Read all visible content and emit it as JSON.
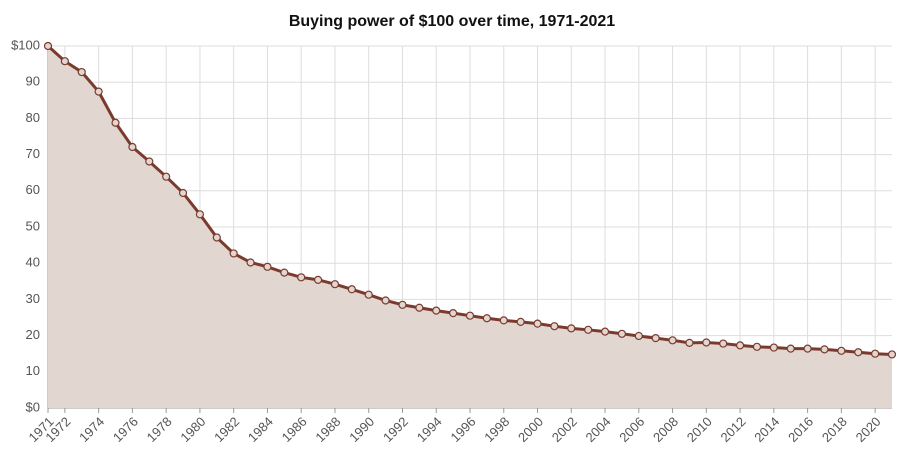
{
  "chart_data": {
    "type": "line",
    "title": "Buying power of $100 over time, 1971-2021",
    "x": [
      1971,
      1972,
      1973,
      1974,
      1975,
      1976,
      1977,
      1978,
      1979,
      1980,
      1981,
      1982,
      1983,
      1984,
      1985,
      1986,
      1987,
      1988,
      1989,
      1990,
      1991,
      1992,
      1993,
      1994,
      1995,
      1996,
      1997,
      1998,
      1999,
      2000,
      2001,
      2002,
      2003,
      2004,
      2005,
      2006,
      2007,
      2008,
      2009,
      2010,
      2011,
      2012,
      2013,
      2014,
      2015,
      2016,
      2017,
      2018,
      2019,
      2020,
      2021
    ],
    "series": [
      {
        "color": "#7a3b2e",
        "fill": "#e2d6d0",
        "values": [
          100,
          95.8,
          92.8,
          87.4,
          78.8,
          72.1,
          68.1,
          63.9,
          59.4,
          53.5,
          47.1,
          42.7,
          40.2,
          39.0,
          37.4,
          36.1,
          35.4,
          34.2,
          32.8,
          31.3,
          29.7,
          28.5,
          27.7,
          26.9,
          26.2,
          25.5,
          24.8,
          24.2,
          23.8,
          23.3,
          22.6,
          22.0,
          21.6,
          21.1,
          20.5,
          19.9,
          19.3,
          18.7,
          18.0,
          18.1,
          17.8,
          17.3,
          16.9,
          16.7,
          16.4,
          16.4,
          16.2,
          15.8,
          15.4,
          15.0,
          14.8
        ]
      }
    ],
    "xlim": [
      1971,
      2021
    ],
    "xticks": [
      1971,
      1972,
      1974,
      1976,
      1978,
      1980,
      1982,
      1984,
      1986,
      1988,
      1990,
      1992,
      1994,
      1996,
      1998,
      2000,
      2002,
      2004,
      2006,
      2008,
      2010,
      2012,
      2014,
      2016,
      2018,
      2020
    ],
    "ylim": [
      0,
      100
    ],
    "yticks": [
      {
        "value": 0,
        "label": "$0"
      },
      10,
      20,
      30,
      40,
      50,
      60,
      70,
      80,
      90,
      {
        "value": 100,
        "label": "$100"
      }
    ],
    "grid": true
  }
}
